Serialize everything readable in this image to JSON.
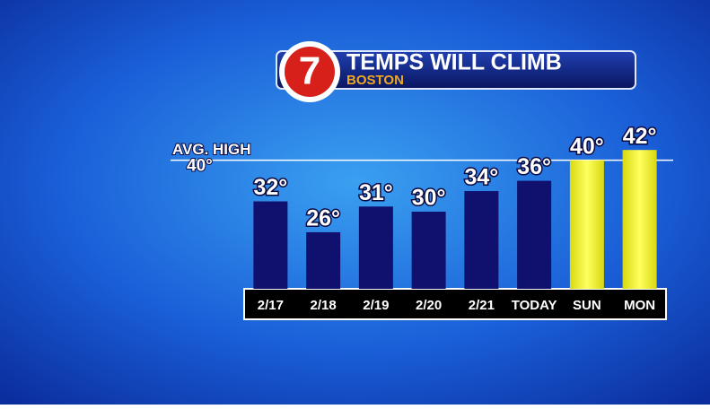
{
  "chart_data": {
    "type": "bar",
    "title": "TEMPS WILL CLIMB",
    "subtitle": "BOSTON",
    "logo": "7",
    "categories": [
      "2/17",
      "2/18",
      "2/19",
      "2/20",
      "2/21",
      "TODAY",
      "SUN",
      "MON"
    ],
    "values": [
      32,
      26,
      31,
      30,
      34,
      36,
      40,
      42
    ],
    "value_labels": [
      "32°",
      "26°",
      "31°",
      "30°",
      "34°",
      "36°",
      "40°",
      "42°"
    ],
    "colors": [
      "#10106e",
      "#10106e",
      "#10106e",
      "#10106e",
      "#10106e",
      "#10106e",
      "#f2f21e",
      "#f2f21e"
    ],
    "ylim": [
      15,
      45
    ],
    "reference_line": {
      "label": "AVG. HIGH",
      "value": 40,
      "value_label": "40°"
    }
  }
}
